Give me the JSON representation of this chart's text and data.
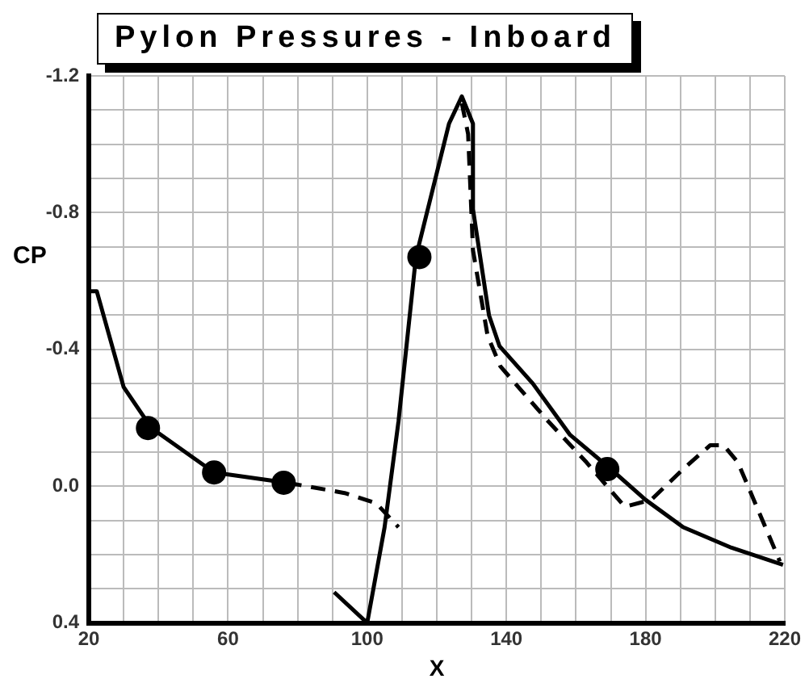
{
  "chart_data": {
    "type": "line",
    "title": "Pylon Pressures - Inboard",
    "xlabel": "X",
    "ylabel": "CP",
    "xlim": [
      20,
      220
    ],
    "ylim": [
      0.4,
      -1.2
    ],
    "xticks": [
      20,
      {
        "value": 30,
        "label": null
      },
      {
        "value": 40,
        "label": null
      },
      {
        "value": 50,
        "label": null
      },
      60,
      {
        "value": 70,
        "label": null
      },
      {
        "value": 80,
        "label": null
      },
      {
        "value": 90,
        "label": null
      },
      100,
      {
        "value": 110,
        "label": null
      },
      {
        "value": 120,
        "label": null
      },
      {
        "value": 130,
        "label": null
      },
      140,
      {
        "value": 150,
        "label": null
      },
      {
        "value": 160,
        "label": null
      },
      {
        "value": 170,
        "label": null
      },
      180,
      {
        "value": 190,
        "label": null
      },
      {
        "value": 200,
        "label": null
      },
      {
        "value": 210,
        "label": null
      },
      220
    ],
    "yticks": [
      -1.2,
      {
        "value": -1.1,
        "label": null
      },
      {
        "value": -1.0,
        "label": null
      },
      {
        "value": -0.9,
        "label": null
      },
      -0.8,
      {
        "value": -0.7,
        "label": null
      },
      {
        "value": -0.6,
        "label": null
      },
      {
        "value": -0.5,
        "label": null
      },
      -0.4,
      {
        "value": -0.3,
        "label": null
      },
      {
        "value": -0.2,
        "label": null
      },
      {
        "value": -0.1,
        "label": null
      },
      {
        "value": 0,
        "label": "0.0"
      },
      {
        "value": 0.1,
        "label": null
      },
      {
        "value": 0.2,
        "label": null
      },
      {
        "value": 0.3,
        "label": null
      },
      0.4
    ],
    "grid": true,
    "legend": false,
    "series": [
      {
        "type": "line",
        "line_style": "solid",
        "marker": "none",
        "color": "#000000",
        "x": [
          20,
          22.3,
          30,
          38,
          56,
          77,
          84,
          90.5,
          100,
          105,
          109,
          114,
          123.5,
          127.2,
          130.4,
          130.4,
          135,
          138,
          147.6,
          158.3,
          170,
          180,
          190.8,
          204.7,
          219.5
        ],
        "values": [
          -0.57,
          -0.57,
          -0.29,
          -0.17,
          -0.04,
          -0.01,
          null,
          0.31,
          0.4,
          0.12,
          -0.19,
          -0.67,
          -1.06,
          -1.14,
          -1.06,
          -0.81,
          -0.5,
          -0.41,
          -0.3,
          -0.15,
          -0.05,
          0.04,
          0.12,
          0.18,
          0.23
        ]
      },
      {
        "type": "line",
        "line_style": "dashed",
        "marker": "none",
        "color": "#000000",
        "x": [
          77,
          93.5,
          102.6,
          109,
          118,
          127.2,
          129,
          130.4,
          134.6,
          138.3,
          152,
          163,
          174,
          181.6,
          190.8,
          198.6,
          202.4,
          206.5,
          218.6
        ],
        "values": [
          -0.01,
          0.02,
          0.05,
          0.12,
          null,
          -1.12,
          -1.03,
          -0.69,
          -0.44,
          -0.35,
          -0.19,
          -0.07,
          0.06,
          0.04,
          -0.05,
          -0.12,
          -0.12,
          -0.07,
          0.22
        ]
      },
      {
        "type": "scatter",
        "marker": "circle",
        "color": "#000000",
        "x": [
          37,
          56,
          76,
          115,
          169
        ],
        "values": [
          -0.17,
          -0.04,
          -0.01,
          -0.67,
          -0.05
        ]
      }
    ]
  }
}
